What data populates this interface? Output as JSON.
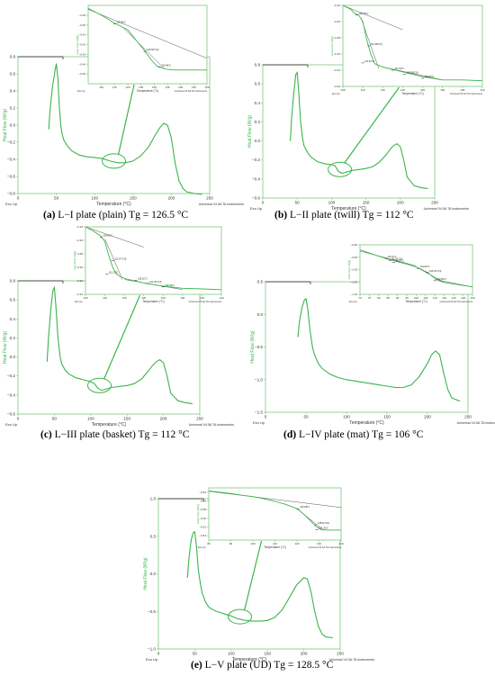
{
  "colors": {
    "curve": "#3ab54a",
    "axis": "#7cc97f",
    "analysis": "#555555",
    "text": "#000000"
  },
  "common": {
    "ylabel": "Heat Flow (W/g)",
    "xlabel": "Temperature (°C)",
    "exo": "Exo Up",
    "footer": "Universal V4.5A TA Instruments"
  },
  "chart_data": [
    {
      "id": "a",
      "type": "line",
      "caption": {
        "letter": "(a)",
        "text": " L−I plate (plain) Tg = 126.5 °C"
      },
      "main": {
        "xlim": [
          0,
          250
        ],
        "ylim": [
          -0.8,
          0.8
        ],
        "xticks": [
          0,
          50,
          100,
          150,
          200,
          250
        ],
        "yticks": [
          -0.8,
          -0.6,
          -0.4,
          -0.2,
          0.0,
          0.2,
          0.4,
          0.6,
          0.8
        ],
        "ytick_labels": [
          "−0.8",
          "−0.6",
          "−0.4",
          "−0.2",
          "0.0",
          "0.2",
          "0.4",
          "0.6",
          "0.8"
        ],
        "x": [
          40,
          42,
          45,
          48,
          50,
          52,
          54,
          56,
          58,
          60,
          65,
          70,
          80,
          90,
          100,
          110,
          120,
          130,
          140,
          150,
          160,
          170,
          180,
          185,
          190,
          195,
          200,
          205,
          210,
          215,
          220,
          230,
          240
        ],
        "y": [
          -0.05,
          0.2,
          0.45,
          0.62,
          0.72,
          0.55,
          0.2,
          -0.02,
          -0.12,
          -0.18,
          -0.25,
          -0.3,
          -0.35,
          -0.37,
          -0.38,
          -0.39,
          -0.42,
          -0.44,
          -0.44,
          -0.42,
          -0.36,
          -0.26,
          -0.1,
          -0.03,
          0.02,
          0.0,
          -0.15,
          -0.45,
          -0.65,
          -0.74,
          -0.78,
          -0.8,
          -0.81
        ]
      },
      "inset": {
        "xlim": [
          105,
          150
        ],
        "ylim": [
          -0.46,
          -0.38
        ],
        "xticks": [
          110,
          115,
          120,
          125,
          130,
          135,
          140,
          145,
          150
        ],
        "yticks": [
          -0.45,
          -0.44,
          -0.43,
          -0.42,
          -0.41,
          -0.4,
          -0.39
        ],
        "ytick_labels": [
          "−0.45",
          "−0.44",
          "−0.43",
          "−0.42",
          "−0.41",
          "−0.40",
          "−0.39"
        ],
        "x": [
          105,
          110,
          115,
          120,
          123,
          126,
          129,
          131,
          134,
          138,
          142,
          146,
          150
        ],
        "y": [
          -0.383,
          -0.39,
          -0.398,
          -0.405,
          -0.415,
          -0.425,
          -0.436,
          -0.442,
          -0.445,
          -0.446,
          -0.446,
          -0.446,
          -0.446
        ],
        "annotations": [
          {
            "x": 115,
            "y": -0.399,
            "text": "115.95°C"
          },
          {
            "x": 126.5,
            "y": -0.427,
            "text": "126.50°C(I)"
          },
          {
            "x": 132,
            "y": -0.443,
            "text": "130.46°C"
          }
        ],
        "tangents": [
          [
            [
              105,
              -0.384
            ],
            [
              150,
              -0.434
            ]
          ],
          [
            [
              118,
              -0.402
            ],
            [
              134,
              -0.445
            ]
          ]
        ]
      },
      "circle": {
        "x": 125,
        "y": -0.42
      }
    },
    {
      "id": "b",
      "type": "line",
      "caption": {
        "letter": "(b)",
        "text": " L−II plate (twill) Tg = 112 °C"
      },
      "main": {
        "xlim": [
          0,
          250
        ],
        "ylim": [
          -0.6,
          0.8
        ],
        "xticks": [
          0,
          50,
          100,
          150,
          200,
          250
        ],
        "yticks": [
          -0.6,
          -0.4,
          -0.2,
          0.0,
          0.2,
          0.4,
          0.6,
          0.8
        ],
        "ytick_labels": [
          "−0.6",
          "−0.4",
          "−0.2",
          "0.0",
          "0.2",
          "0.4",
          "0.6",
          "0.8"
        ],
        "x": [
          40,
          42,
          45,
          48,
          50,
          52,
          55,
          58,
          60,
          65,
          70,
          80,
          90,
          100,
          105,
          110,
          115,
          120,
          130,
          140,
          150,
          160,
          170,
          180,
          185,
          190,
          195,
          200,
          205,
          210,
          220,
          230,
          240
        ],
        "y": [
          0.0,
          0.25,
          0.5,
          0.7,
          0.72,
          0.55,
          0.2,
          0.02,
          -0.05,
          -0.12,
          -0.17,
          -0.22,
          -0.24,
          -0.25,
          -0.26,
          -0.32,
          -0.34,
          -0.33,
          -0.31,
          -0.3,
          -0.29,
          -0.27,
          -0.22,
          -0.14,
          -0.09,
          -0.05,
          -0.03,
          -0.06,
          -0.2,
          -0.38,
          -0.47,
          -0.49,
          -0.5
        ]
      },
      "inset": {
        "xlim": [
          105,
          140
        ],
        "ylim": [
          -0.34,
          -0.24
        ],
        "xticks": [
          105,
          110,
          115,
          120,
          125,
          130,
          135,
          140
        ],
        "yticks": [
          -0.34,
          -0.32,
          -0.3,
          -0.28,
          -0.26,
          -0.24
        ],
        "ytick_labels": [
          "−0.34",
          "−0.32",
          "−0.30",
          "−0.28",
          "−0.26",
          "−0.24"
        ],
        "x": [
          105,
          107,
          108,
          109,
          110,
          111,
          112,
          113,
          115,
          120,
          125,
          130,
          135,
          140
        ],
        "y": [
          -0.24,
          -0.245,
          -0.25,
          -0.252,
          -0.26,
          -0.283,
          -0.3,
          -0.312,
          -0.316,
          -0.322,
          -0.328,
          -0.332,
          -0.332,
          -0.333
        ],
        "annotations": [
          {
            "x": 108.5,
            "y": -0.252,
            "text": "108.76°C"
          },
          {
            "x": 111.5,
            "y": -0.29,
            "text": "111.99°C(I)"
          },
          {
            "x": 110,
            "y": -0.311,
            "text": "111.34°C"
          },
          {
            "x": 117.5,
            "y": -0.32,
            "text": "117.61°C"
          },
          {
            "x": 120.5,
            "y": -0.325,
            "text": "120.98°C(I)"
          },
          {
            "x": 125,
            "y": -0.33,
            "text": "125.05°C"
          }
        ],
        "tangents": [
          [
            [
              105,
              -0.24
            ],
            [
              120,
              -0.27
            ]
          ],
          [
            [
              109.5,
              -0.255
            ],
            [
              114,
              -0.318
            ]
          ],
          [
            [
              115,
              -0.316
            ],
            [
              130,
              -0.332
            ]
          ]
        ]
      },
      "circle": {
        "x": 112,
        "y": -0.3
      }
    },
    {
      "id": "c",
      "type": "line",
      "caption": {
        "letter": "(c)",
        "text": " L−III plate (basket) Tg = 112 °C"
      },
      "main": {
        "xlim": [
          0,
          250
        ],
        "ylim": [
          -0.6,
          0.8
        ],
        "xticks": [
          0,
          50,
          100,
          150,
          200,
          250
        ],
        "yticks": [
          -0.6,
          -0.4,
          -0.2,
          0.0,
          0.2,
          0.4,
          0.6,
          0.8
        ],
        "ytick_labels": [
          "−0.6",
          "−0.4",
          "−0.2",
          "0.0",
          "0.2",
          "0.4",
          "0.6",
          "0.8"
        ],
        "x": [
          40,
          42,
          45,
          48,
          50,
          52,
          55,
          58,
          60,
          65,
          70,
          80,
          90,
          100,
          105,
          110,
          115,
          120,
          130,
          140,
          150,
          160,
          170,
          180,
          185,
          190,
          195,
          200,
          205,
          210,
          220,
          230,
          240
        ],
        "y": [
          -0.05,
          0.2,
          0.5,
          0.7,
          0.73,
          0.55,
          0.2,
          0.0,
          -0.07,
          -0.14,
          -0.18,
          -0.22,
          -0.24,
          -0.26,
          -0.28,
          -0.33,
          -0.35,
          -0.34,
          -0.32,
          -0.31,
          -0.3,
          -0.28,
          -0.23,
          -0.14,
          -0.09,
          -0.05,
          -0.03,
          -0.06,
          -0.2,
          -0.38,
          -0.46,
          -0.48,
          -0.49
        ]
      },
      "inset": {
        "xlim": [
          105,
          140
        ],
        "ylim": [
          -0.34,
          -0.24
        ],
        "xticks": [
          105,
          110,
          115,
          120,
          125,
          130,
          135,
          140
        ],
        "yticks": [
          -0.34,
          -0.32,
          -0.3,
          -0.28,
          -0.26,
          -0.24
        ],
        "ytick_labels": [
          "−0.34",
          "−0.32",
          "−0.30",
          "−0.28",
          "−0.26",
          "−0.24"
        ],
        "x": [
          105,
          107,
          109,
          110,
          111,
          112,
          113,
          114,
          116,
          120,
          125,
          130,
          135,
          140
        ],
        "y": [
          -0.24,
          -0.246,
          -0.254,
          -0.262,
          -0.283,
          -0.3,
          -0.31,
          -0.314,
          -0.318,
          -0.323,
          -0.328,
          -0.331,
          -0.332,
          -0.333
        ],
        "annotations": [
          {
            "x": 109,
            "y": -0.255,
            "text": "109.81°C"
          },
          {
            "x": 112,
            "y": -0.29,
            "text": "112.07°C(I)"
          },
          {
            "x": 110.5,
            "y": -0.31,
            "text": "111.21°C"
          },
          {
            "x": 118,
            "y": -0.319,
            "text": "118.02°C"
          },
          {
            "x": 121,
            "y": -0.324,
            "text": "121.40°C(I)"
          },
          {
            "x": 125,
            "y": -0.329,
            "text": "125.53°C"
          }
        ],
        "tangents": [
          [
            [
              105,
              -0.24
            ],
            [
              120,
              -0.27
            ]
          ],
          [
            [
              110,
              -0.258
            ],
            [
              114.5,
              -0.318
            ]
          ],
          [
            [
              115,
              -0.318
            ],
            [
              130,
              -0.333
            ]
          ]
        ]
      },
      "circle": {
        "x": 112,
        "y": -0.3
      }
    },
    {
      "id": "d",
      "type": "line",
      "caption": {
        "letter": "(d)",
        "text": " L−IV plate (mat) Tg = 106 °C"
      },
      "main": {
        "xlim": [
          0,
          250
        ],
        "ylim": [
          -1.5,
          0.5
        ],
        "xticks": [
          0,
          50,
          100,
          150,
          200,
          250
        ],
        "yticks": [
          -1.5,
          -1.0,
          -0.5,
          0.0,
          0.5
        ],
        "ytick_labels": [
          "−1.5",
          "−1.0",
          "−0.5",
          "0.0",
          "0.5"
        ],
        "x": [
          40,
          42,
          45,
          48,
          50,
          52,
          55,
          58,
          60,
          65,
          70,
          80,
          90,
          100,
          110,
          120,
          130,
          140,
          150,
          160,
          170,
          180,
          190,
          195,
          200,
          205,
          210,
          215,
          220,
          225,
          230,
          240
        ],
        "y": [
          -0.35,
          -0.1,
          0.1,
          0.22,
          0.24,
          0.1,
          -0.25,
          -0.5,
          -0.6,
          -0.75,
          -0.83,
          -0.92,
          -0.97,
          -1.0,
          -1.02,
          -1.04,
          -1.06,
          -1.08,
          -1.1,
          -1.12,
          -1.12,
          -1.08,
          -0.95,
          -0.85,
          -0.75,
          -0.62,
          -0.56,
          -0.62,
          -0.9,
          -1.15,
          -1.28,
          -1.33
        ]
      },
      "inset": {
        "xlim": [
          70,
          130
        ],
        "ylim": [
          -1.1,
          -0.9
        ],
        "xticks": [
          70,
          75,
          80,
          85,
          90,
          95,
          100,
          105,
          110,
          115,
          120,
          125,
          130
        ],
        "yticks": [
          -1.1,
          -1.05,
          -1.0,
          -0.95,
          -0.9
        ],
        "ytick_labels": [
          "−1.10",
          "−1.05",
          "−1.00",
          "−0.95",
          "−0.90"
        ],
        "x": [
          70,
          75,
          80,
          85,
          90,
          95,
          100,
          103,
          106,
          109,
          112,
          115,
          120,
          125,
          130
        ],
        "y": [
          -0.92,
          -0.933,
          -0.946,
          -0.958,
          -0.968,
          -0.978,
          -0.99,
          -1.0,
          -1.012,
          -1.03,
          -1.045,
          -1.052,
          -1.058,
          -1.064,
          -1.07
        ],
        "annotations": [
          {
            "x": 84,
            "y": -0.955,
            "text": "84.21°C"
          },
          {
            "x": 86,
            "y": -0.963,
            "text": "86.02°C(I)"
          },
          {
            "x": 88,
            "y": -0.971,
            "text": "88.67°C"
          },
          {
            "x": 101,
            "y": -0.995,
            "text": "101.82°C"
          },
          {
            "x": 106,
            "y": -1.012,
            "text": "106.43°C(I)"
          },
          {
            "x": 110,
            "y": -1.045,
            "text": "110.09°C"
          }
        ],
        "tangents": [
          [
            [
              70,
              -0.925
            ],
            [
              100,
              -0.985
            ]
          ],
          [
            [
              100,
              -0.99
            ],
            [
              115,
              -1.052
            ]
          ],
          [
            [
              110,
              -1.04
            ],
            [
              130,
              -1.07
            ]
          ]
        ]
      },
      "circle": null
    },
    {
      "id": "e",
      "type": "line",
      "caption": {
        "letter": "(e)",
        "text": " L−V plate (UD) Tg = 128.5 °C"
      },
      "main": {
        "xlim": [
          0,
          250
        ],
        "ylim": [
          -1.0,
          1.0
        ],
        "xticks": [
          0,
          50,
          100,
          150,
          200,
          250
        ],
        "yticks": [
          -1.0,
          -0.5,
          0.0,
          0.5,
          1.0
        ],
        "ytick_labels": [
          "−1.0",
          "−0.5",
          "0.0",
          "0.5",
          "1.0"
        ],
        "x": [
          40,
          42,
          45,
          48,
          50,
          52,
          55,
          58,
          60,
          65,
          70,
          80,
          90,
          100,
          110,
          120,
          130,
          140,
          150,
          160,
          170,
          180,
          190,
          200,
          205,
          210,
          215,
          220,
          225,
          230,
          240
        ],
        "y": [
          -0.05,
          0.2,
          0.45,
          0.55,
          0.56,
          0.4,
          0.05,
          -0.15,
          -0.25,
          -0.38,
          -0.45,
          -0.5,
          -0.53,
          -0.56,
          -0.6,
          -0.62,
          -0.63,
          -0.63,
          -0.62,
          -0.58,
          -0.48,
          -0.32,
          -0.15,
          -0.05,
          -0.07,
          -0.25,
          -0.5,
          -0.7,
          -0.8,
          -0.84,
          -0.85
        ]
      },
      "inset": {
        "xlim": [
          80,
          140
        ],
        "ylim": [
          -0.65,
          -0.53
        ],
        "xticks": [
          80,
          90,
          100,
          110,
          120,
          130,
          140
        ],
        "yticks": [
          -0.64,
          -0.62,
          -0.6,
          -0.58,
          -0.56,
          -0.54
        ],
        "ytick_labels": [
          "−0.64",
          "−0.62",
          "−0.60",
          "−0.58",
          "−0.56",
          "−0.54"
        ],
        "x": [
          80,
          85,
          90,
          95,
          100,
          105,
          110,
          115,
          120,
          123,
          126,
          128.5,
          131,
          134,
          138,
          140
        ],
        "y": [
          -0.537,
          -0.54,
          -0.543,
          -0.547,
          -0.55,
          -0.555,
          -0.561,
          -0.568,
          -0.578,
          -0.59,
          -0.605,
          -0.618,
          -0.626,
          -0.627,
          -0.627,
          -0.627
        ],
        "annotations": [
          {
            "x": 120.5,
            "y": -0.578,
            "text": "120.68°C"
          },
          {
            "x": 128.5,
            "y": -0.615,
            "text": "128.51°C(I)"
          },
          {
            "x": 129,
            "y": -0.626,
            "text": "127.25°C"
          }
        ],
        "tangents": [
          [
            [
              80,
              -0.538
            ],
            [
              140,
              -0.575
            ]
          ],
          [
            [
              121,
              -0.582
            ],
            [
              132,
              -0.627
            ]
          ]
        ]
      },
      "circle": {
        "x": 112,
        "y": -0.57
      }
    }
  ]
}
